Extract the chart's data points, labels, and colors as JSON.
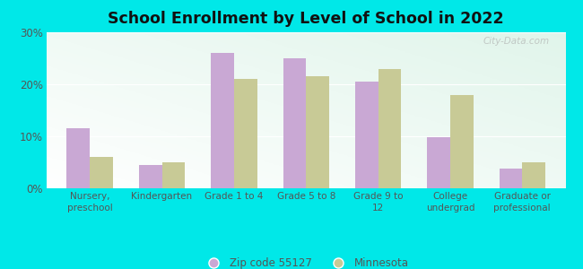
{
  "title": "School Enrollment by Level of School in 2022",
  "categories": [
    "Nursery,\npreschool",
    "Kindergarten",
    "Grade 1 to 4",
    "Grade 5 to 8",
    "Grade 9 to\n12",
    "College\nundergrad",
    "Graduate or\nprofessional"
  ],
  "zipcode_values": [
    11.5,
    4.5,
    26.0,
    25.0,
    20.5,
    9.8,
    3.8
  ],
  "minnesota_values": [
    6.0,
    5.0,
    21.0,
    21.5,
    23.0,
    18.0,
    5.0
  ],
  "zipcode_color": "#c9a8d4",
  "minnesota_color": "#c8ca96",
  "background_color": "#00e8e8",
  "ylim": [
    0,
    30
  ],
  "yticks": [
    0,
    10,
    20,
    30
  ],
  "ytick_labels": [
    "0%",
    "10%",
    "20%",
    "30%"
  ],
  "legend_label_zip": "Zip code 55127",
  "legend_label_mn": "Minnesota",
  "bar_width": 0.32,
  "watermark": "City-Data.com"
}
